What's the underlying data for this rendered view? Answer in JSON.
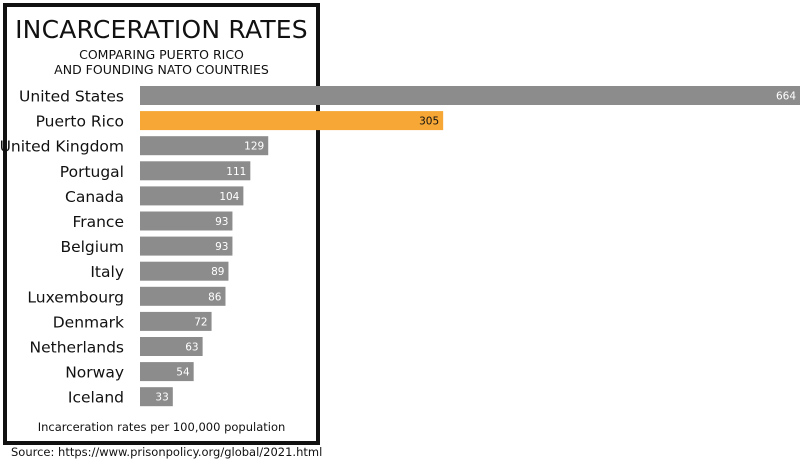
{
  "header": {
    "title": "INCARCERATION RATES",
    "subtitle_line1": "COMPARING PUERTO RICO",
    "subtitle_line2": "AND FOUNDING NATO COUNTRIES"
  },
  "footnote": "Incarceration rates per 100,000 population",
  "source": "Source: https://www.prisonpolicy.org/global/2021.html",
  "colors": {
    "bar_default": "#8c8c8c",
    "bar_highlight": "#f6a735",
    "label_default": "#ffffff",
    "label_highlight": "#111111"
  },
  "chart_data": {
    "type": "bar",
    "orientation": "horizontal",
    "title": "INCARCERATION RATES",
    "subtitle": "COMPARING PUERTO RICO AND FOUNDING NATO COUNTRIES",
    "xlabel": "Incarceration rates per 100,000 population",
    "ylabel": "",
    "categories": [
      "United States",
      "Puerto Rico",
      "United Kingdom",
      "Portugal",
      "Canada",
      "France",
      "Belgium",
      "Italy",
      "Luxembourg",
      "Denmark",
      "Netherlands",
      "Norway",
      "Iceland"
    ],
    "values": [
      664,
      305,
      129,
      111,
      104,
      93,
      93,
      89,
      86,
      72,
      63,
      54,
      33
    ],
    "highlight": "Puerto Rico",
    "xlim": [
      0,
      664
    ],
    "grid": false,
    "legend": "none"
  }
}
